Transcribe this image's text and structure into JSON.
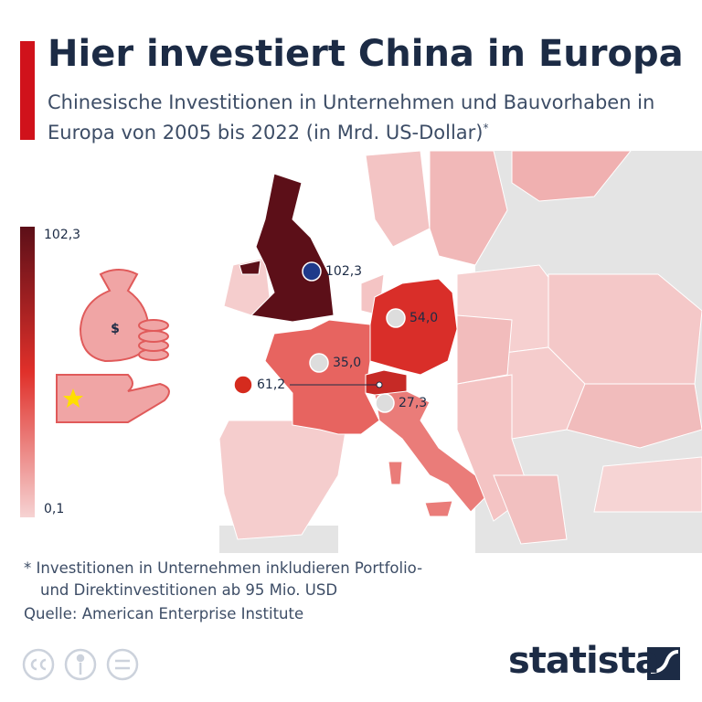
{
  "header": {
    "title": "Hier investiert China in Europa",
    "subtitle": "Chinesische Investitionen in Unternehmen und Bauvorhaben in Europa von 2005 bis 2022 (in Mrd. US-Dollar)",
    "subtitle_mark": "*"
  },
  "scale": {
    "max": {
      "value": 102.3,
      "label": "102,3"
    },
    "min": {
      "value": 0.1,
      "label": "0,1"
    }
  },
  "regions": [
    {
      "value": 102.3,
      "label": "102,3"
    },
    {
      "value": 54.0,
      "label": "54,0"
    },
    {
      "value": 35.0,
      "label": "35,0"
    },
    {
      "value": 61.2,
      "label": "61,2"
    },
    {
      "value": 27.3,
      "label": "27,3"
    }
  ],
  "footer": {
    "note": [
      "* Investitionen in Unternehmen inkludieren Portfolio-",
      "und Direktinvestitionen ab 95 Mio. USD"
    ],
    "source": "Quelle: American Enterprise Institute",
    "brand": "statista"
  }
}
